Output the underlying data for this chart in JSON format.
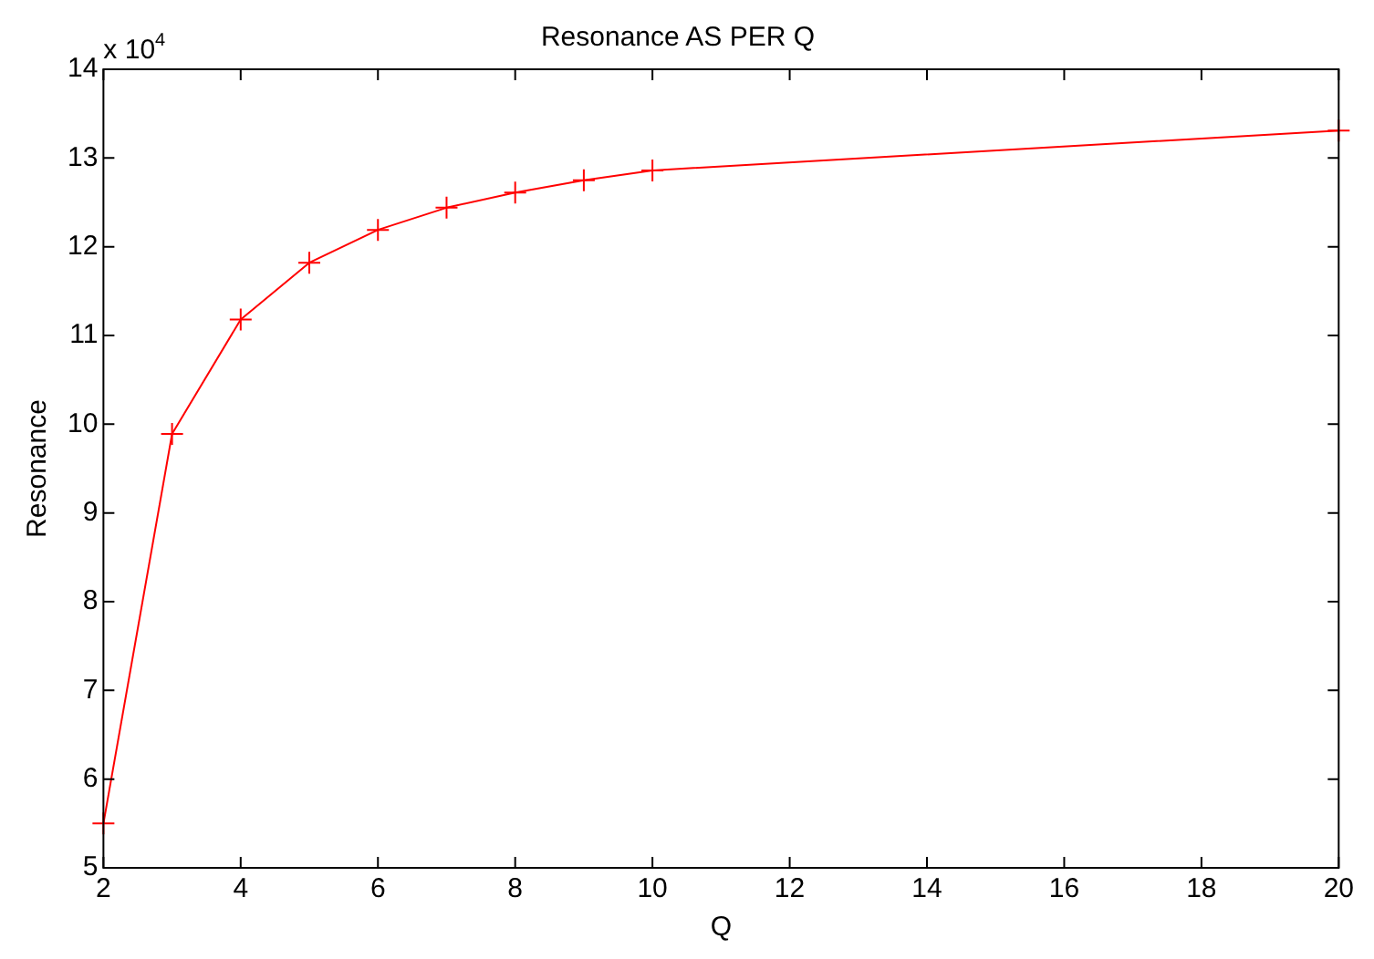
{
  "chart_data": {
    "type": "line",
    "title": "Resonance AS PER Q",
    "xlabel": "Q",
    "ylabel": "Resonance",
    "annotations": [
      "x 10$^{4}$"
    ],
    "x": [
      2,
      3,
      4,
      5,
      6,
      7,
      8,
      9,
      10,
      20
    ],
    "series": [
      {
        "color": "#ff0000",
        "values": [
          5.5,
          9.89,
          11.18,
          11.82,
          12.19,
          12.44,
          12.61,
          12.75,
          12.86,
          13.31
        ]
      }
    ],
    "xlim": [
      2,
      20
    ],
    "xticks": [
      2,
      4,
      6,
      8,
      10,
      12,
      14,
      16,
      18,
      20
    ],
    "ylim": [
      5,
      14
    ],
    "yticks": [
      5,
      6,
      7,
      8,
      9,
      10,
      11,
      12,
      13,
      14
    ],
    "grid": false,
    "legend": false,
    "marker": "cross",
    "line_style": "solid"
  }
}
